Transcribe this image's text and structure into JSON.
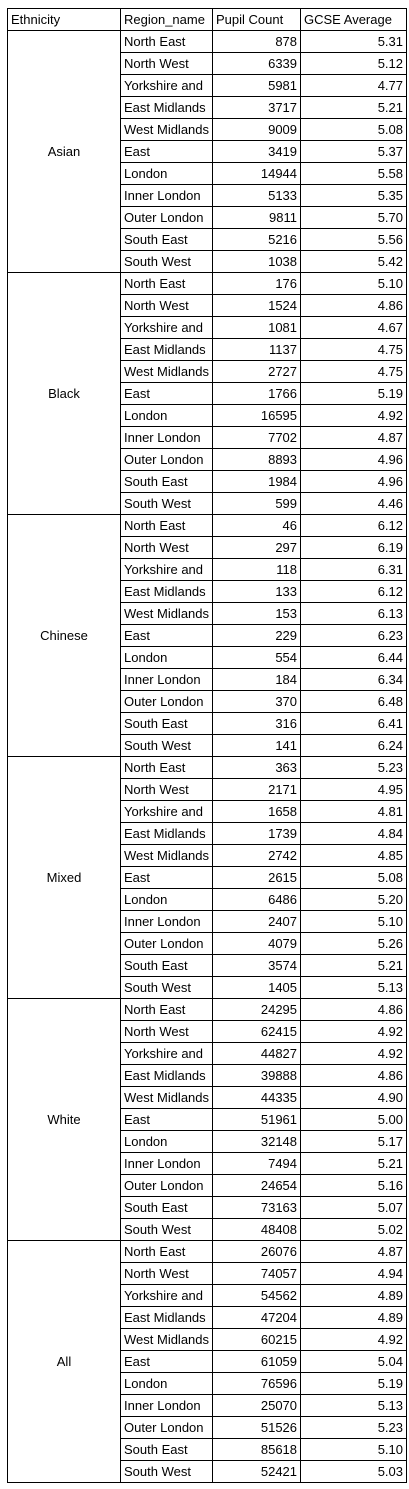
{
  "headers": [
    "Ethnicity",
    "Region_name",
    "Pupil Count",
    "GCSE Average"
  ],
  "groups": [
    {
      "ethnicity": "Asian",
      "rows": [
        {
          "region": "North East",
          "count": "878",
          "avg": "5.31"
        },
        {
          "region": "North West",
          "count": "6339",
          "avg": "5.12"
        },
        {
          "region": "Yorkshire and",
          "count": "5981",
          "avg": "4.77"
        },
        {
          "region": "East Midlands",
          "count": "3717",
          "avg": "5.21"
        },
        {
          "region": "West Midlands",
          "count": "9009",
          "avg": "5.08"
        },
        {
          "region": "East",
          "count": "3419",
          "avg": "5.37"
        },
        {
          "region": "London",
          "count": "14944",
          "avg": "5.58"
        },
        {
          "region": "Inner London",
          "count": "5133",
          "avg": "5.35"
        },
        {
          "region": "Outer London",
          "count": "9811",
          "avg": "5.70"
        },
        {
          "region": "South East",
          "count": "5216",
          "avg": "5.56"
        },
        {
          "region": "South West",
          "count": "1038",
          "avg": "5.42"
        }
      ]
    },
    {
      "ethnicity": "Black",
      "rows": [
        {
          "region": "North East",
          "count": "176",
          "avg": "5.10"
        },
        {
          "region": "North West",
          "count": "1524",
          "avg": "4.86"
        },
        {
          "region": "Yorkshire and",
          "count": "1081",
          "avg": "4.67"
        },
        {
          "region": "East Midlands",
          "count": "1137",
          "avg": "4.75"
        },
        {
          "region": "West Midlands",
          "count": "2727",
          "avg": "4.75"
        },
        {
          "region": "East",
          "count": "1766",
          "avg": "5.19"
        },
        {
          "region": "London",
          "count": "16595",
          "avg": "4.92"
        },
        {
          "region": "Inner London",
          "count": "7702",
          "avg": "4.87"
        },
        {
          "region": "Outer London",
          "count": "8893",
          "avg": "4.96"
        },
        {
          "region": "South East",
          "count": "1984",
          "avg": "4.96"
        },
        {
          "region": "South West",
          "count": "599",
          "avg": "4.46"
        }
      ]
    },
    {
      "ethnicity": "Chinese",
      "rows": [
        {
          "region": "North East",
          "count": "46",
          "avg": "6.12"
        },
        {
          "region": "North West",
          "count": "297",
          "avg": "6.19"
        },
        {
          "region": "Yorkshire and",
          "count": "118",
          "avg": "6.31"
        },
        {
          "region": "East Midlands",
          "count": "133",
          "avg": "6.12"
        },
        {
          "region": "West Midlands",
          "count": "153",
          "avg": "6.13"
        },
        {
          "region": "East",
          "count": "229",
          "avg": "6.23"
        },
        {
          "region": "London",
          "count": "554",
          "avg": "6.44"
        },
        {
          "region": "Inner London",
          "count": "184",
          "avg": "6.34"
        },
        {
          "region": "Outer London",
          "count": "370",
          "avg": "6.48"
        },
        {
          "region": "South East",
          "count": "316",
          "avg": "6.41"
        },
        {
          "region": "South West",
          "count": "141",
          "avg": "6.24"
        }
      ]
    },
    {
      "ethnicity": "Mixed",
      "rows": [
        {
          "region": "North East",
          "count": "363",
          "avg": "5.23"
        },
        {
          "region": "North West",
          "count": "2171",
          "avg": "4.95"
        },
        {
          "region": "Yorkshire and",
          "count": "1658",
          "avg": "4.81"
        },
        {
          "region": "East Midlands",
          "count": "1739",
          "avg": "4.84"
        },
        {
          "region": "West Midlands",
          "count": "2742",
          "avg": "4.85"
        },
        {
          "region": "East",
          "count": "2615",
          "avg": "5.08"
        },
        {
          "region": "London",
          "count": "6486",
          "avg": "5.20"
        },
        {
          "region": "Inner London",
          "count": "2407",
          "avg": "5.10"
        },
        {
          "region": "Outer London",
          "count": "4079",
          "avg": "5.26"
        },
        {
          "region": "South East",
          "count": "3574",
          "avg": "5.21"
        },
        {
          "region": "South West",
          "count": "1405",
          "avg": "5.13"
        }
      ]
    },
    {
      "ethnicity": "White",
      "rows": [
        {
          "region": "North East",
          "count": "24295",
          "avg": "4.86"
        },
        {
          "region": "North West",
          "count": "62415",
          "avg": "4.92"
        },
        {
          "region": "Yorkshire and",
          "count": "44827",
          "avg": "4.92"
        },
        {
          "region": "East Midlands",
          "count": "39888",
          "avg": "4.86"
        },
        {
          "region": "West Midlands",
          "count": "44335",
          "avg": "4.90"
        },
        {
          "region": "East",
          "count": "51961",
          "avg": "5.00"
        },
        {
          "region": "London",
          "count": "32148",
          "avg": "5.17"
        },
        {
          "region": "Inner London",
          "count": "7494",
          "avg": "5.21"
        },
        {
          "region": "Outer London",
          "count": "24654",
          "avg": "5.16"
        },
        {
          "region": "South East",
          "count": "73163",
          "avg": "5.07"
        },
        {
          "region": "South West",
          "count": "48408",
          "avg": "5.02"
        }
      ]
    },
    {
      "ethnicity": "All",
      "rows": [
        {
          "region": "North East",
          "count": "26076",
          "avg": "4.87"
        },
        {
          "region": "North West",
          "count": "74057",
          "avg": "4.94"
        },
        {
          "region": "Yorkshire and",
          "count": "54562",
          "avg": "4.89"
        },
        {
          "region": "East Midlands",
          "count": "47204",
          "avg": "4.89"
        },
        {
          "region": "West Midlands",
          "count": "60215",
          "avg": "4.92"
        },
        {
          "region": "East",
          "count": "61059",
          "avg": "5.04"
        },
        {
          "region": "London",
          "count": "76596",
          "avg": "5.19"
        },
        {
          "region": "Inner London",
          "count": "25070",
          "avg": "5.13"
        },
        {
          "region": "Outer London",
          "count": "51526",
          "avg": "5.23"
        },
        {
          "region": "South East",
          "count": "85618",
          "avg": "5.10"
        },
        {
          "region": "South West",
          "count": "52421",
          "avg": "5.03"
        }
      ]
    }
  ]
}
